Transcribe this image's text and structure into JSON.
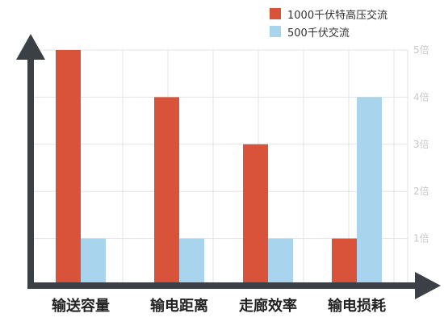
{
  "chart_data": {
    "type": "bar",
    "title": "",
    "xlabel": "",
    "ylabel": "",
    "categories": [
      "输送容量",
      "输电距离",
      "走廊效率",
      "输电损耗"
    ],
    "series": [
      {
        "name": "1000千伏特高压交流",
        "values": [
          5,
          4,
          3,
          1
        ],
        "color": "#d9533b"
      },
      {
        "name": "500千伏交流",
        "values": [
          1,
          1,
          1,
          4
        ],
        "color": "#a8d4ee"
      }
    ],
    "ylim": [
      0,
      5
    ],
    "y_ticks": [
      {
        "value": 1,
        "label": "1倍"
      },
      {
        "value": 2,
        "label": "2倍"
      },
      {
        "value": 3,
        "label": "3倍"
      },
      {
        "value": 4,
        "label": "4倍"
      },
      {
        "value": 5,
        "label": "5倍"
      }
    ],
    "grid": true,
    "legend_position": "top-right",
    "axis_color": "#3a4046"
  }
}
